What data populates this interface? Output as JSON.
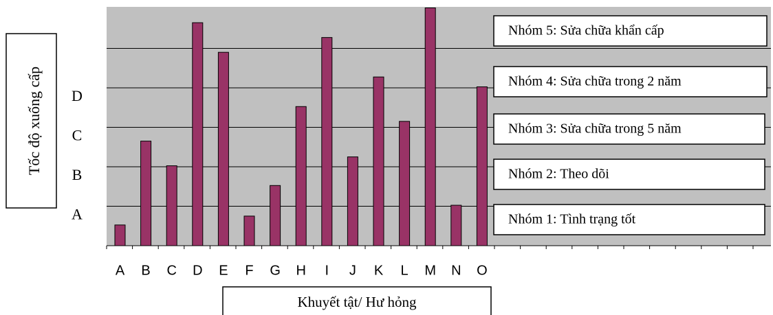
{
  "chart_data": {
    "type": "bar",
    "categories": [
      "A",
      "B",
      "C",
      "D",
      "E",
      "F",
      "G",
      "H",
      "I",
      "J",
      "K",
      "L",
      "M",
      "N",
      "O"
    ],
    "values": [
      2.1,
      10.6,
      8.1,
      22.6,
      19.6,
      3.0,
      6.1,
      14.1,
      21.1,
      9.0,
      17.1,
      12.6,
      24.1,
      4.1,
      16.1
    ],
    "ylim": [
      0,
      24.9
    ],
    "y_levels": [
      {
        "label": "A",
        "value": 4
      },
      {
        "label": "B",
        "value": 8
      },
      {
        "label": "C",
        "value": 12
      },
      {
        "label": "D",
        "value": 16
      },
      {
        "label": "",
        "value": 20
      }
    ],
    "groups": [
      {
        "label": "Nhóm 5: Sửa chữa khẩn cấp"
      },
      {
        "label": "Nhóm 4: Sửa chữa trong 2 năm"
      },
      {
        "label": "Nhóm 3: Sửa chữa trong 5 năm"
      },
      {
        "label": "Nhóm 2: Theo dõi"
      },
      {
        "label": "Nhóm 1: Tình trạng tốt"
      }
    ],
    "ylabel": "Tốc độ xuống cấp",
    "xlabel": "Khuyết tật/ Hư hỏng",
    "grid": true,
    "colors": {
      "bar": "#993366",
      "plot_bg": "#c0c0c0",
      "gridline": "#000000"
    }
  }
}
